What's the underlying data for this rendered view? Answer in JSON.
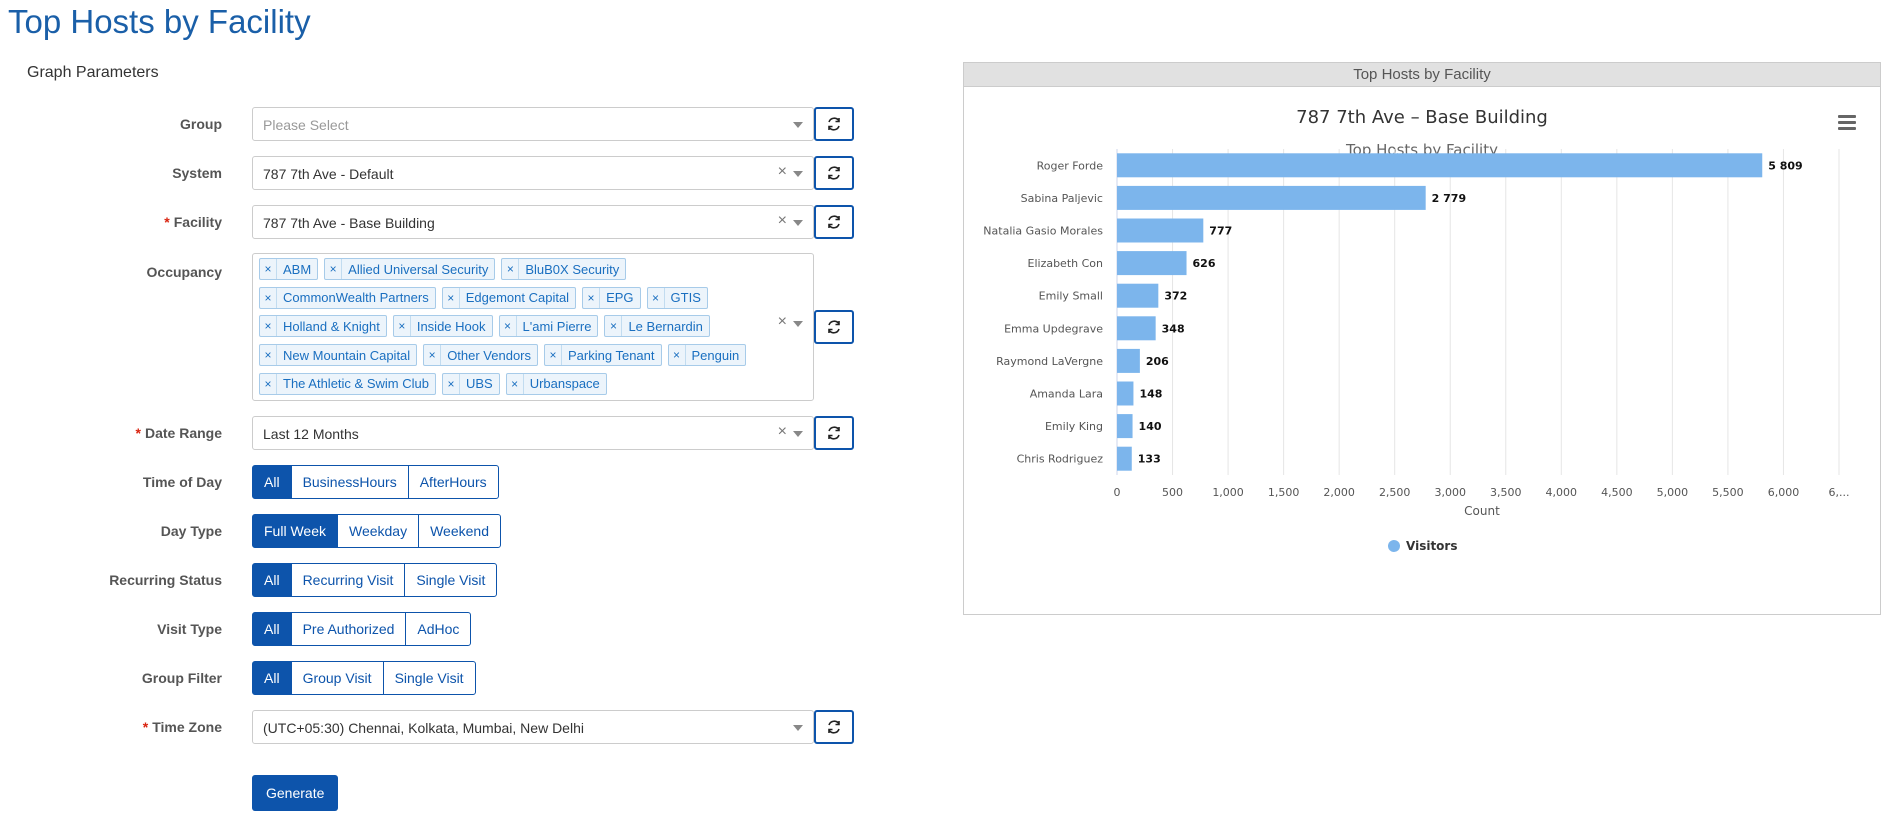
{
  "page": {
    "title": "Top Hosts by Facility"
  },
  "params": {
    "section_title": "Graph Parameters",
    "group": {
      "label": "Group",
      "placeholder": "Please Select"
    },
    "system": {
      "label": "System",
      "value": "787 7th Ave - Default"
    },
    "facility": {
      "label": "Facility",
      "value": "787 7th Ave - Base Building"
    },
    "occupancy": {
      "label": "Occupancy",
      "tag_rows": [
        [
          "ABM",
          "Allied Universal Security",
          "BluB0X Security"
        ],
        [
          "CommonWealth Partners",
          "Edgemont Capital",
          "EPG",
          "GTIS"
        ],
        [
          "Holland & Knight",
          "Inside Hook",
          "L'ami Pierre",
          "Le Bernardin"
        ],
        [
          "New Mountain Capital",
          "Other Vendors",
          "Parking Tenant",
          "Penguin"
        ],
        [
          "The Athletic & Swim Club",
          "UBS",
          "Urbanspace"
        ]
      ]
    },
    "date_range": {
      "label": "Date Range",
      "value": "Last 12 Months"
    },
    "time_of_day": {
      "label": "Time of Day",
      "options": [
        "All",
        "BusinessHours",
        "AfterHours"
      ],
      "selected": "All"
    },
    "day_type": {
      "label": "Day Type",
      "options": [
        "Full Week",
        "Weekday",
        "Weekend"
      ],
      "selected": "Full Week"
    },
    "recurring_status": {
      "label": "Recurring Status",
      "options": [
        "All",
        "Recurring Visit",
        "Single Visit"
      ],
      "selected": "All"
    },
    "visit_type": {
      "label": "Visit Type",
      "options": [
        "All",
        "Pre Authorized",
        "AdHoc"
      ],
      "selected": "All"
    },
    "group_filter": {
      "label": "Group Filter",
      "options": [
        "All",
        "Group Visit",
        "Single Visit"
      ],
      "selected": "All"
    },
    "time_zone": {
      "label": "Time Zone",
      "value": "(UTC+05:30) Chennai, Kolkata, Mumbai, New Delhi"
    },
    "generate_label": "Generate"
  },
  "panel": {
    "header": "Top Hosts by Facility"
  },
  "chart_data": {
    "type": "bar",
    "orientation": "horizontal",
    "title": "787 7th Ave – Base Building",
    "subtitle": "Top Hosts by Facility",
    "xlabel": "Count",
    "ylabel": "",
    "categories": [
      "Roger Forde",
      "Sabina Paljevic",
      "Natalia Gasio Morales",
      "Elizabeth Con",
      "Emily Small",
      "Emma Updegrave",
      "Raymond LaVergne",
      "Amanda Lara",
      "Emily King",
      "Chris Rodriguez"
    ],
    "series": [
      {
        "name": "Visitors",
        "values": [
          5809,
          2779,
          777,
          626,
          372,
          348,
          206,
          148,
          140,
          133
        ],
        "color": "#7cb5ec"
      }
    ],
    "data_labels": [
      "5 809",
      "2 779",
      "777",
      "626",
      "372",
      "348",
      "206",
      "148",
      "140",
      "133"
    ],
    "x_ticks": [
      "0",
      "500",
      "1,000",
      "1,500",
      "2,000",
      "2,500",
      "3,000",
      "3,500",
      "4,000",
      "4,500",
      "5,000",
      "5,500",
      "6,000",
      "6,..."
    ],
    "xlim": [
      0,
      6500
    ],
    "grid": true,
    "legend": "bottom-center"
  },
  "colors": {
    "accent": "#0d54ab",
    "required": "#d9230f",
    "bar": "#7cb5ec"
  }
}
